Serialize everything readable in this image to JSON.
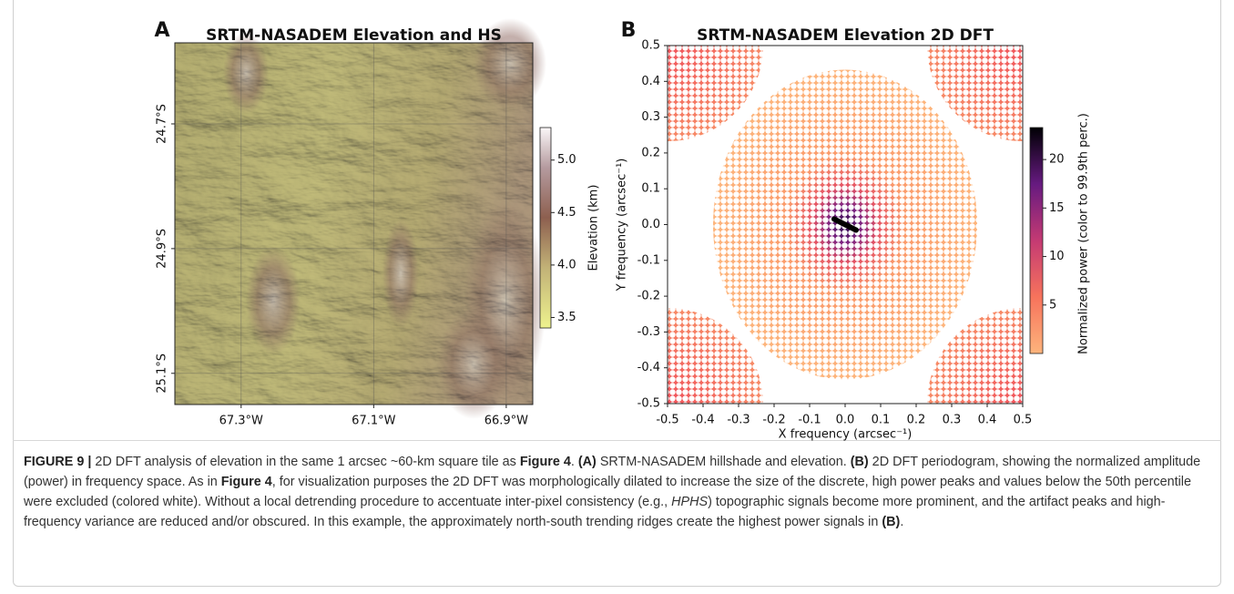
{
  "chart_data": [
    {
      "type": "map",
      "panel_label": "A",
      "title": "SRTM-NASADEM Elevation and HS",
      "xlim": [
        -67.4,
        -66.86
      ],
      "xticks": [
        {
          "value": -67.3,
          "label": "67.3°W"
        },
        {
          "value": -67.1,
          "label": "67.1°W"
        },
        {
          "value": -66.9,
          "label": "66.9°W"
        }
      ],
      "ylim": [
        -25.15,
        -24.57
      ],
      "yticks": [
        {
          "value": -24.7,
          "label": "24.7°S"
        },
        {
          "value": -24.9,
          "label": "24.9°S"
        },
        {
          "value": -25.1,
          "label": "25.1°S"
        }
      ],
      "grid": true,
      "colorbar": {
        "label": "Elevation (km)",
        "lim": [
          3.4,
          5.31
        ],
        "ticks": [
          3.5,
          {
            "value": 4,
            "label": "4.0"
          },
          4.5,
          {
            "value": 5,
            "label": "5.0"
          }
        ]
      }
    },
    {
      "type": "density",
      "panel_label": "B",
      "title": "SRTM-NASADEM Elevation 2D DFT",
      "xlabel": "X frequency (arcsec⁻¹)",
      "ylabel": "Y frequency (arcsec⁻¹)",
      "xlim": [
        -0.5,
        0.5
      ],
      "xticks": [
        -0.5,
        -0.4,
        -0.3,
        -0.2,
        -0.1,
        {
          "value": 0,
          "label": "0.0"
        },
        0.1,
        0.2,
        0.3,
        0.4,
        0.5
      ],
      "ylim": [
        -0.5,
        0.5
      ],
      "yticks": [
        -0.5,
        -0.4,
        -0.3,
        -0.2,
        -0.1,
        {
          "value": 0,
          "label": "0.0"
        },
        0.1,
        0.2,
        0.3,
        0.4,
        0.5
      ],
      "colorbar": {
        "label": "Normalized power (color to 99.9th perc.)",
        "lim": [
          0,
          23.3
        ],
        "ticks": [
          5,
          10,
          15,
          20
        ]
      }
    }
  ],
  "caption": {
    "parts": [
      "FIGURE 9 |",
      " 2D DFT analysis of elevation in the same 1 arcsec ~60-km square tile as ",
      "Figure 4",
      ". ",
      "(A)",
      " SRTM-NASADEM hillshade and elevation. ",
      "(B)",
      " 2D DFT periodogram, showing the normalized amplitude (power) in frequency space. As in ",
      "Figure 4",
      ", for visualization purposes the 2D DFT was morphologically dilated to increase the size of the discrete, high power peaks and values below the 50th percentile were excluded (colored white). Without a local detrending procedure to accentuate inter-pixel consistency (e.g., ",
      "HPHS",
      ") topographic signals become more prominent, and the artifact peaks and high-frequency variance are reduced and/or obscured. In this example, the approximately north-south trending ridges create the highest power signals in ",
      "(B)",
      "."
    ]
  }
}
